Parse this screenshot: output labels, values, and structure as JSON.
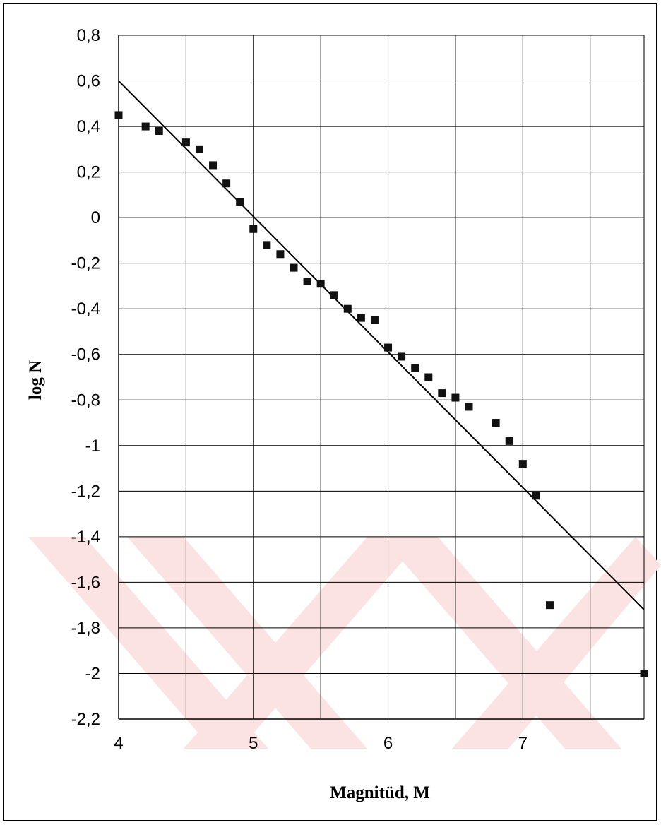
{
  "chart_data": {
    "type": "scatter",
    "title": "",
    "xlabel": "Magnitüd, M",
    "ylabel": "log N",
    "xlim": [
      4,
      7.9
    ],
    "ylim": [
      -2.2,
      0.8
    ],
    "x_ticks": [
      4,
      5,
      6,
      7
    ],
    "x_tick_labels": [
      "4",
      "5",
      "6",
      "7"
    ],
    "y_ticks": [
      0.8,
      0.6,
      0.4,
      0.2,
      0,
      -0.2,
      -0.4,
      -0.6,
      -0.8,
      -1,
      -1.2,
      -1.4,
      -1.6,
      -1.8,
      -2,
      -2.2
    ],
    "y_tick_labels": [
      "0,8",
      "0,6",
      "0,4",
      "0,2",
      "0",
      "-0,2",
      "-0,4",
      "-0,6",
      "-0,8",
      "-1",
      "-1,2",
      "-1,4",
      "-1,6",
      "-1,8",
      "-2",
      "-2,2"
    ],
    "grid": true,
    "series": [
      {
        "type": "scatter",
        "marker": "square",
        "color": "#111111",
        "x": [
          4.0,
          4.2,
          4.3,
          4.5,
          4.6,
          4.7,
          4.8,
          4.9,
          5.0,
          5.1,
          5.2,
          5.3,
          5.4,
          5.5,
          5.6,
          5.7,
          5.8,
          5.9,
          6.0,
          6.1,
          6.2,
          6.3,
          6.4,
          6.5,
          6.6,
          6.8,
          6.9,
          7.0,
          7.1,
          7.2,
          7.9
        ],
        "y": [
          0.45,
          0.4,
          0.38,
          0.33,
          0.3,
          0.23,
          0.15,
          0.07,
          -0.05,
          -0.12,
          -0.16,
          -0.22,
          -0.28,
          -0.29,
          -0.34,
          -0.4,
          -0.44,
          -0.45,
          -0.57,
          -0.61,
          -0.66,
          -0.7,
          -0.77,
          -0.79,
          -0.83,
          -0.9,
          -0.98,
          -1.08,
          -1.22,
          -1.7,
          -2.0
        ]
      },
      {
        "type": "line",
        "color": "#000000",
        "x": [
          4.0,
          7.9
        ],
        "y": [
          0.6,
          -1.72
        ]
      }
    ]
  },
  "style": {
    "grid_color": "#000000",
    "frame_color": "#000000",
    "watermark_color": "#fbe3e3"
  }
}
